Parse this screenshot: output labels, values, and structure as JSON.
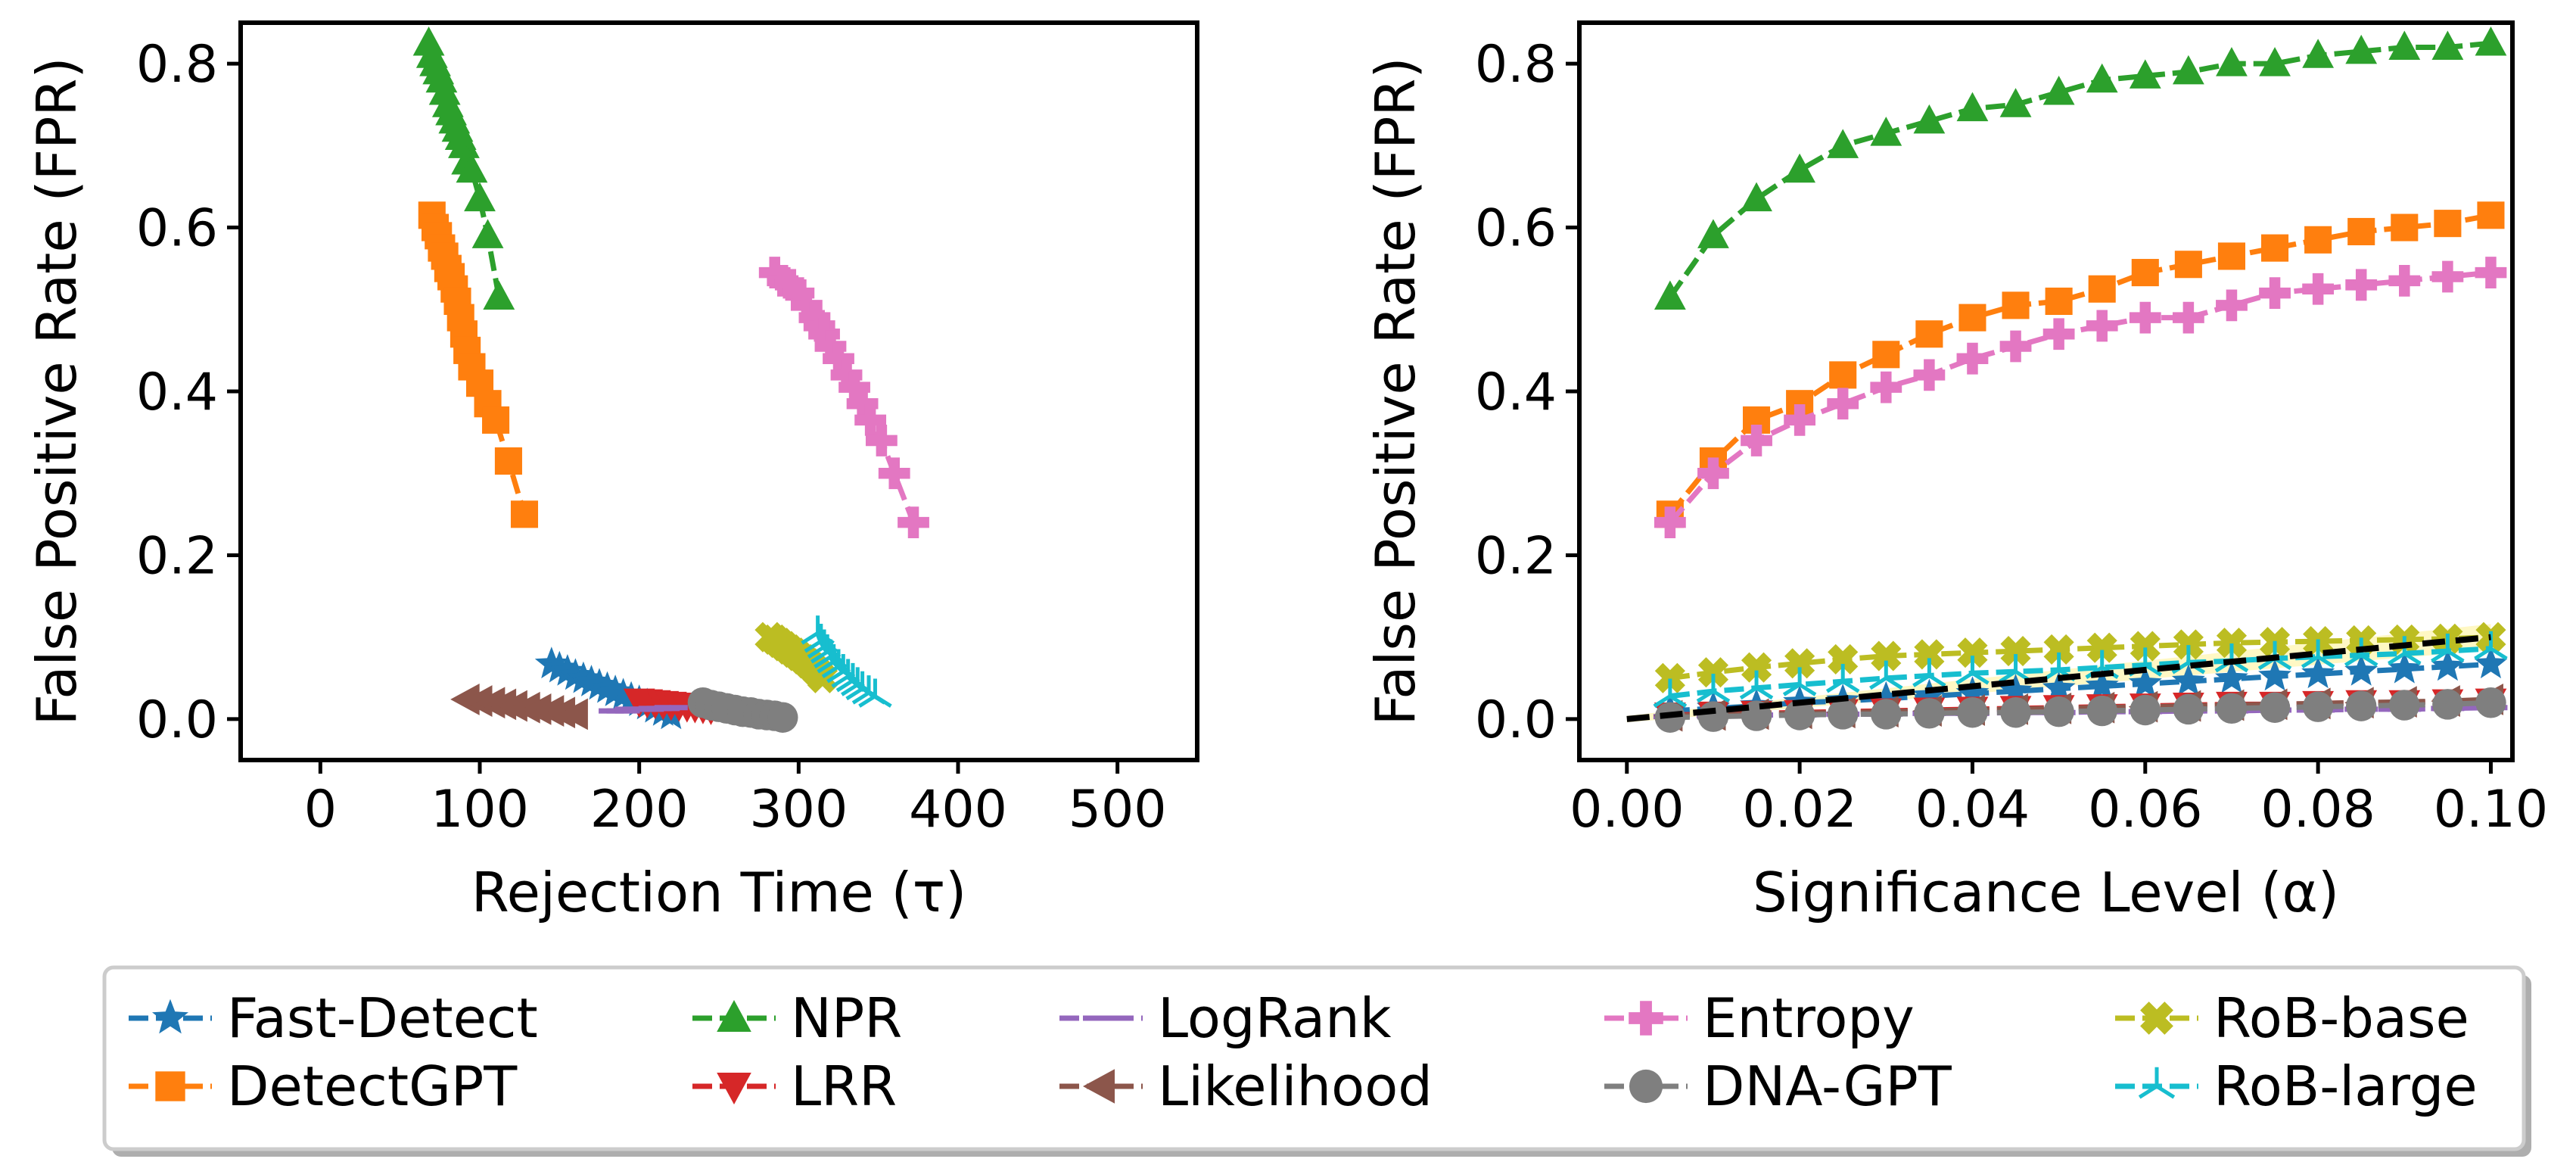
{
  "chart_data": [
    {
      "type": "line",
      "id": "left",
      "xlabel": "Rejection Time (τ)",
      "ylabel": "False Positive Rate (FPR)",
      "xlim": [
        -50,
        550
      ],
      "ylim": [
        -0.05,
        0.85
      ],
      "xticks": [
        {
          "v": 0,
          "label": "0"
        },
        {
          "v": 100,
          "label": "100"
        },
        {
          "v": 200,
          "label": "200"
        },
        {
          "v": 300,
          "label": "300"
        },
        {
          "v": 400,
          "label": "400"
        },
        {
          "v": 500,
          "label": "500"
        }
      ],
      "yticks": [
        {
          "v": 0.0,
          "label": "0.0"
        },
        {
          "v": 0.2,
          "label": "0.2"
        },
        {
          "v": 0.4,
          "label": "0.4"
        },
        {
          "v": 0.6,
          "label": "0.6"
        },
        {
          "v": 0.8,
          "label": "0.8"
        }
      ],
      "series": [
        {
          "name": "Fast-Detect",
          "color": "#1f77b4",
          "marker": "star",
          "x": [
            145,
            150,
            155,
            160,
            165,
            170,
            175,
            180,
            185,
            190,
            195,
            200,
            205,
            210,
            215,
            220
          ],
          "y": [
            0.067,
            0.062,
            0.058,
            0.053,
            0.049,
            0.045,
            0.041,
            0.037,
            0.033,
            0.029,
            0.025,
            0.021,
            0.017,
            0.013,
            0.009,
            0.005
          ]
        },
        {
          "name": "DetectGPT",
          "color": "#ff7f0e",
          "marker": "square",
          "x": [
            70,
            72,
            74,
            76,
            78,
            80,
            82,
            84,
            86,
            88,
            90,
            92,
            95,
            100,
            105,
            110,
            118,
            128
          ],
          "y": [
            0.615,
            0.6,
            0.59,
            0.575,
            0.565,
            0.55,
            0.54,
            0.525,
            0.51,
            0.49,
            0.47,
            0.45,
            0.43,
            0.41,
            0.385,
            0.365,
            0.315,
            0.25
          ]
        },
        {
          "name": "NPR",
          "color": "#2ca02c",
          "marker": "triangle-up",
          "x": [
            68,
            70,
            72,
            74,
            76,
            78,
            80,
            82,
            84,
            86,
            88,
            90,
            92,
            95,
            100,
            105,
            112
          ],
          "y": [
            0.825,
            0.81,
            0.8,
            0.79,
            0.78,
            0.765,
            0.75,
            0.74,
            0.73,
            0.72,
            0.71,
            0.7,
            0.68,
            0.67,
            0.635,
            0.59,
            0.515
          ]
        },
        {
          "name": "LRR",
          "color": "#d62728",
          "marker": "triangle-down",
          "x": [
            200,
            205,
            210,
            215,
            220,
            225,
            230,
            235,
            240,
            245
          ],
          "y": [
            0.022,
            0.021,
            0.02,
            0.019,
            0.018,
            0.017,
            0.016,
            0.015,
            0.014,
            0.013
          ]
        },
        {
          "name": "LogRank",
          "color": "#9467bd",
          "marker": "hline",
          "x": [
            185,
            190,
            195,
            200,
            205,
            210,
            215,
            220
          ],
          "y": [
            0.01,
            0.01,
            0.012,
            0.012,
            0.012,
            0.013,
            0.013,
            0.014
          ]
        },
        {
          "name": "Likelihood",
          "color": "#8c564b",
          "marker": "triangle-left",
          "x": [
            92,
            100,
            108,
            115,
            122,
            130,
            137,
            145,
            152,
            160
          ],
          "y": [
            0.024,
            0.022,
            0.02,
            0.018,
            0.016,
            0.014,
            0.012,
            0.01,
            0.008,
            0.006
          ]
        },
        {
          "name": "Entropy",
          "color": "#e377c2",
          "marker": "plus",
          "x": [
            285,
            290,
            295,
            300,
            305,
            310,
            313,
            316,
            320,
            325,
            330,
            335,
            340,
            345,
            352,
            360,
            372
          ],
          "y": [
            0.545,
            0.535,
            0.53,
            0.52,
            0.505,
            0.49,
            0.48,
            0.47,
            0.455,
            0.44,
            0.42,
            0.405,
            0.385,
            0.365,
            0.34,
            0.3,
            0.24
          ]
        },
        {
          "name": "DNA-GPT",
          "color": "#7f7f7f",
          "marker": "circle",
          "x": [
            240,
            245,
            250,
            255,
            260,
            265,
            270,
            275,
            280,
            285,
            290
          ],
          "y": [
            0.02,
            0.017,
            0.015,
            0.013,
            0.011,
            0.009,
            0.008,
            0.006,
            0.005,
            0.004,
            0.002
          ]
        },
        {
          "name": "RoB-base",
          "color": "#bcbd22",
          "marker": "x",
          "x": [
            282,
            285,
            288,
            291,
            294,
            297,
            300,
            303,
            306,
            309,
            312,
            315
          ],
          "y": [
            0.1,
            0.097,
            0.093,
            0.089,
            0.085,
            0.081,
            0.077,
            0.073,
            0.068,
            0.063,
            0.057,
            0.05
          ]
        },
        {
          "name": "RoB-large",
          "color": "#17becf",
          "marker": "tri",
          "x": [
            312,
            314,
            316,
            318,
            320,
            322,
            325,
            328,
            331,
            334,
            337,
            340,
            344,
            348
          ],
          "y": [
            0.105,
            0.095,
            0.088,
            0.082,
            0.076,
            0.07,
            0.064,
            0.058,
            0.052,
            0.047,
            0.042,
            0.037,
            0.032,
            0.028
          ]
        }
      ]
    },
    {
      "type": "line",
      "id": "right",
      "xlabel": "Significance Level (α)",
      "ylabel": "False Positive Rate (FPR)",
      "xlim": [
        -0.0055,
        0.1025
      ],
      "ylim": [
        -0.05,
        0.85
      ],
      "xticks": [
        {
          "v": 0.0,
          "label": "0.00"
        },
        {
          "v": 0.02,
          "label": "0.02"
        },
        {
          "v": 0.04,
          "label": "0.04"
        },
        {
          "v": 0.06,
          "label": "0.06"
        },
        {
          "v": 0.08,
          "label": "0.08"
        },
        {
          "v": 0.1,
          "label": "0.10"
        }
      ],
      "yticks": [
        {
          "v": 0.0,
          "label": "0.0"
        },
        {
          "v": 0.2,
          "label": "0.2"
        },
        {
          "v": 0.4,
          "label": "0.4"
        },
        {
          "v": 0.6,
          "label": "0.6"
        },
        {
          "v": 0.8,
          "label": "0.8"
        }
      ],
      "x": [
        0.005,
        0.01,
        0.015,
        0.02,
        0.025,
        0.03,
        0.035,
        0.04,
        0.045,
        0.05,
        0.055,
        0.06,
        0.065,
        0.07,
        0.075,
        0.08,
        0.085,
        0.09,
        0.095,
        0.1
      ],
      "reference_line": {
        "name": "y = α",
        "color": "#000000",
        "x": [
          0,
          0.1
        ],
        "y": [
          0,
          0.1
        ]
      },
      "series": [
        {
          "name": "Fast-Detect",
          "color": "#1f77b4",
          "marker": "star",
          "y": [
            0.01,
            0.013,
            0.016,
            0.02,
            0.022,
            0.025,
            0.028,
            0.031,
            0.034,
            0.037,
            0.04,
            0.043,
            0.046,
            0.049,
            0.052,
            0.055,
            0.058,
            0.061,
            0.064,
            0.067
          ]
        },
        {
          "name": "DetectGPT",
          "color": "#ff7f0e",
          "marker": "square",
          "y": [
            0.25,
            0.315,
            0.365,
            0.385,
            0.42,
            0.445,
            0.47,
            0.49,
            0.505,
            0.51,
            0.525,
            0.545,
            0.555,
            0.565,
            0.575,
            0.585,
            0.595,
            0.6,
            0.605,
            0.615
          ]
        },
        {
          "name": "NPR",
          "color": "#2ca02c",
          "marker": "triangle-up",
          "y": [
            0.515,
            0.59,
            0.635,
            0.67,
            0.7,
            0.715,
            0.73,
            0.745,
            0.75,
            0.765,
            0.78,
            0.785,
            0.79,
            0.8,
            0.8,
            0.81,
            0.815,
            0.82,
            0.82,
            0.825
          ]
        },
        {
          "name": "LRR",
          "color": "#d62728",
          "marker": "triangle-down",
          "y": [
            0.005,
            0.006,
            0.007,
            0.008,
            0.009,
            0.01,
            0.011,
            0.012,
            0.013,
            0.014,
            0.015,
            0.016,
            0.017,
            0.018,
            0.018,
            0.019,
            0.02,
            0.02,
            0.021,
            0.022
          ]
        },
        {
          "name": "LogRank",
          "color": "#9467bd",
          "marker": "hline",
          "y": [
            0.003,
            0.004,
            0.005,
            0.005,
            0.006,
            0.006,
            0.007,
            0.007,
            0.008,
            0.008,
            0.009,
            0.009,
            0.01,
            0.01,
            0.011,
            0.011,
            0.012,
            0.012,
            0.013,
            0.014
          ]
        },
        {
          "name": "Likelihood",
          "color": "#8c564b",
          "marker": "triangle-left",
          "y": [
            0.004,
            0.005,
            0.006,
            0.007,
            0.008,
            0.009,
            0.01,
            0.011,
            0.012,
            0.013,
            0.014,
            0.015,
            0.016,
            0.017,
            0.018,
            0.019,
            0.02,
            0.021,
            0.022,
            0.024
          ]
        },
        {
          "name": "Entropy",
          "color": "#e377c2",
          "marker": "plus",
          "y": [
            0.24,
            0.3,
            0.34,
            0.365,
            0.385,
            0.405,
            0.42,
            0.44,
            0.455,
            0.47,
            0.48,
            0.49,
            0.49,
            0.505,
            0.52,
            0.525,
            0.53,
            0.535,
            0.54,
            0.545
          ]
        },
        {
          "name": "DNA-GPT",
          "color": "#7f7f7f",
          "marker": "circle",
          "y": [
            0.002,
            0.003,
            0.004,
            0.005,
            0.006,
            0.006,
            0.007,
            0.008,
            0.008,
            0.009,
            0.01,
            0.011,
            0.012,
            0.013,
            0.014,
            0.015,
            0.016,
            0.017,
            0.018,
            0.02
          ]
        },
        {
          "name": "RoB-base",
          "color": "#bcbd22",
          "marker": "x",
          "y": [
            0.05,
            0.057,
            0.063,
            0.068,
            0.073,
            0.077,
            0.079,
            0.081,
            0.083,
            0.085,
            0.087,
            0.089,
            0.091,
            0.093,
            0.094,
            0.095,
            0.096,
            0.097,
            0.098,
            0.1
          ]
        },
        {
          "name": "RoB-large",
          "color": "#17becf",
          "marker": "tri",
          "y": [
            0.028,
            0.034,
            0.038,
            0.042,
            0.046,
            0.05,
            0.053,
            0.056,
            0.058,
            0.06,
            0.063,
            0.066,
            0.069,
            0.071,
            0.074,
            0.076,
            0.078,
            0.08,
            0.083,
            0.086
          ]
        }
      ]
    }
  ],
  "legend": {
    "position": "bottom",
    "columns": [
      [
        "Fast-Detect",
        "DetectGPT"
      ],
      [
        "NPR",
        "LRR"
      ],
      [
        "LogRank",
        "Likelihood"
      ],
      [
        "Entropy",
        "DNA-GPT"
      ],
      [
        "RoB-base",
        "RoB-large"
      ]
    ]
  }
}
